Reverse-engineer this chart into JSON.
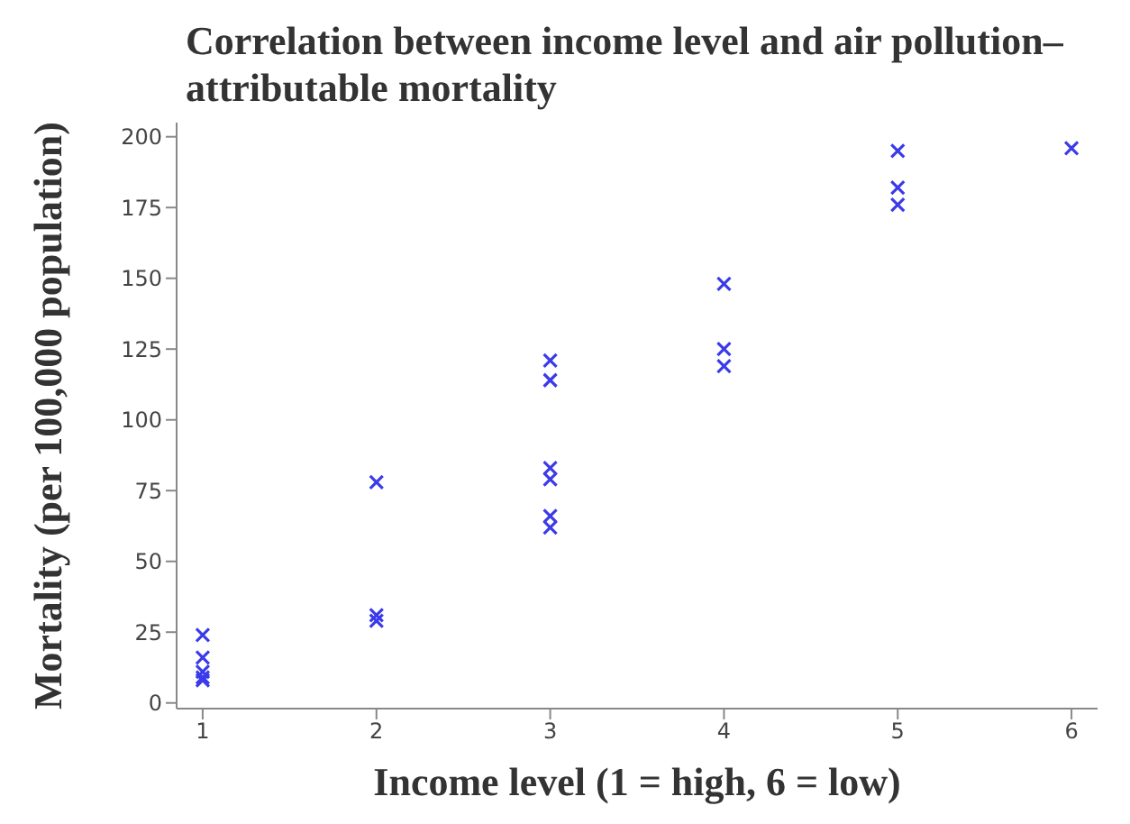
{
  "chart_data": {
    "type": "scatter",
    "title": "Correlation between income level and air pollution–attributable mortality",
    "xlabel": "Income level (1 = high, 6 = low)",
    "ylabel": "Mortality (per 100,000 population)",
    "x": [
      1,
      1,
      1,
      1,
      1,
      2,
      2,
      2,
      3,
      3,
      3,
      3,
      3,
      3,
      4,
      4,
      4,
      5,
      5,
      5,
      6
    ],
    "series": [
      {
        "color": "#3b3bea",
        "values": [
          24,
          16,
          11,
          9,
          8,
          78,
          31,
          29,
          121,
          114,
          83,
          79,
          66,
          62,
          148,
          125,
          119,
          195,
          182,
          176,
          196
        ]
      }
    ],
    "xlim": [
      0.85,
      6.15
    ],
    "xticks": [
      1,
      2,
      3,
      4,
      5,
      6
    ],
    "ylim": [
      -2,
      205
    ],
    "yticks": [
      0,
      25,
      50,
      75,
      100,
      125,
      150,
      175,
      200
    ],
    "grid": false,
    "legend": false,
    "marker": "cross"
  }
}
